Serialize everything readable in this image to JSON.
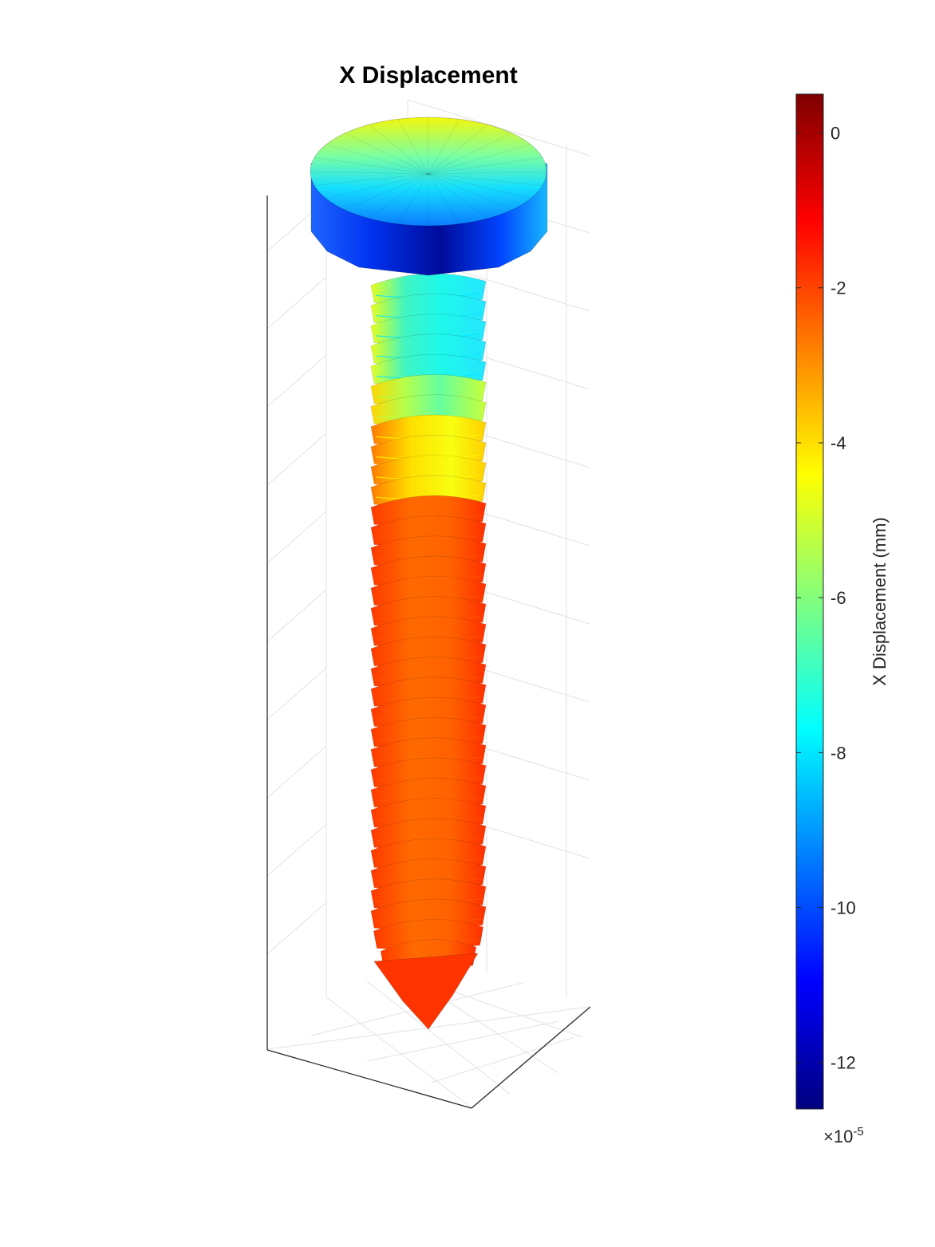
{
  "figure": {
    "title": "X Displacement"
  },
  "chart_data": {
    "type": "heatmap",
    "plot_kind": "3D surface patch (screw mesh) colored by X displacement",
    "title": "X Displacement",
    "colorbar": {
      "label": "X Displacement (mm)",
      "exponent_label": "×10",
      "exponent_value": "-5",
      "colormap": "jet",
      "range": [
        -12.6,
        0.5
      ],
      "ticks": [
        0,
        -2,
        -4,
        -6,
        -8,
        -10,
        -12
      ],
      "tick_labels": [
        "0",
        "-2",
        "-4",
        "-6",
        "-8",
        "-10",
        "-12"
      ]
    },
    "regions": [
      {
        "name": "head top (upper rim)",
        "value": -4.3
      },
      {
        "name": "head top (center band)",
        "value": -8.0
      },
      {
        "name": "head side (front)",
        "value": -12.3
      },
      {
        "name": "neck",
        "value": -8.0
      },
      {
        "name": "upper thread",
        "value": -5.5
      },
      {
        "name": "transition thread",
        "value": -4.3
      },
      {
        "name": "shank threads",
        "value": -2.2
      },
      {
        "name": "tip",
        "value": -1.8
      }
    ],
    "axes3d": {
      "grid": true,
      "tick_labels_visible": false
    },
    "colors": {
      "jet_stops": [
        "#00007f",
        "#0000ff",
        "#00ffff",
        "#ffff00",
        "#ff0000",
        "#7f0000"
      ]
    }
  }
}
